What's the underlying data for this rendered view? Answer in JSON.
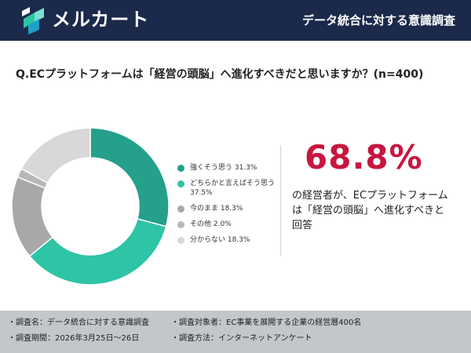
{
  "header": {
    "brand": "メルカート",
    "title": "データ統合に対する意識調査"
  },
  "question": "Q.ECプラットフォームは「経営の頭脳」へ進化すべきだと思いますか？(n=400)",
  "highlight": {
    "percent": "68.8%",
    "text": "の経営者が、ECプラットフォームは「経営の頭脳」へ進化すべきと回答"
  },
  "chart_data": {
    "type": "pie",
    "hole": true,
    "categories": [
      "強くそう思う",
      "どちらかと言えばそう思う",
      "今のまま",
      "その他",
      "分からない"
    ],
    "values": [
      31.3,
      37.5,
      18.3,
      2.0,
      18.3
    ],
    "labels": [
      "強くそう思う 31.3%",
      "どちらかと言えばそう思う 37.5%",
      "今のまま 18.3%",
      "その他 2.0%",
      "分からない 18.3%"
    ],
    "colors": [
      "#24a08b",
      "#2ec4a6",
      "#a8a8a8",
      "#b8b8b8",
      "#d8d8d8"
    ],
    "legend_position": "right"
  },
  "footer": {
    "survey_name": "・調査名：データ統合に対する意識調査",
    "survey_target": "・調査対象者：EC事業を展開する企業の経営層400名",
    "survey_period": "・調査期間：2026年3月25日〜26日",
    "survey_method": "・調査方法：インターネットアンケート"
  }
}
